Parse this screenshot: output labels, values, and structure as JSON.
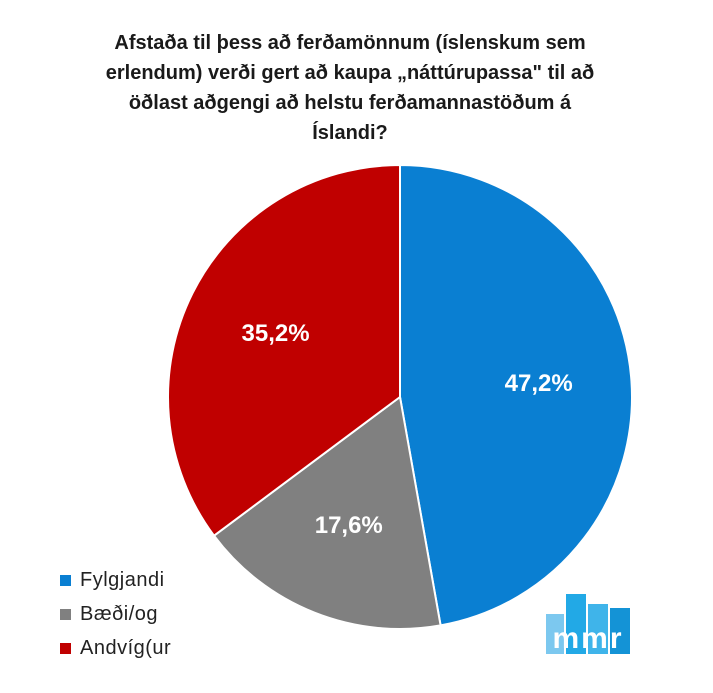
{
  "chart_data": {
    "type": "pie",
    "title": "Afstaða til þess að ferðamönnum (íslenskum sem erlendum) verði gert að kaupa „náttúrupassa\" til að öðlast aðgengi að helstu ferðamannastöðum á Íslandi?",
    "slices": [
      {
        "label": "Fylgjandi",
        "value": 47.2,
        "display": "47,2%",
        "color": "#0a7fd2"
      },
      {
        "label": "Bæði/og",
        "value": 17.6,
        "display": "17,6%",
        "color": "#808080"
      },
      {
        "label": "Andvíg(ur",
        "value": 35.2,
        "display": "35,2%",
        "color": "#c00000"
      }
    ],
    "legend_position": "bottom-left"
  },
  "logo": {
    "text": "mmr",
    "color": "#22a9e6"
  }
}
